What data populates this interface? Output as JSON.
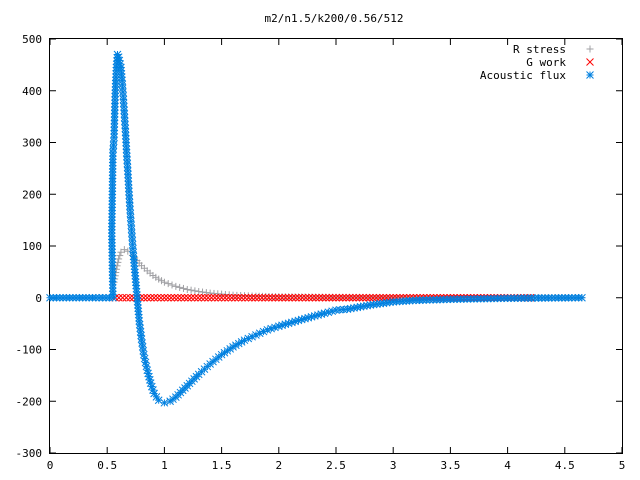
{
  "chart_data": {
    "type": "scatter",
    "title": "m2/n1.5/k200/0.56/512",
    "xlabel": "",
    "ylabel": "",
    "xlim": [
      0,
      5
    ],
    "ylim": [
      -300,
      500
    ],
    "xticks": [
      "0",
      "0.5",
      "1",
      "1.5",
      "2",
      "2.5",
      "3",
      "3.5",
      "4",
      "4.5",
      "5"
    ],
    "yticks": [
      "-300",
      "-200",
      "-100",
      "0",
      "100",
      "200",
      "300",
      "400",
      "500"
    ],
    "grid": false,
    "legend_position": "top-right",
    "series": [
      {
        "name": "R stress",
        "marker": "plus",
        "color": "#a0a0a4",
        "points": [
          [
            0.56,
            30
          ],
          [
            0.58,
            55
          ],
          [
            0.6,
            75
          ],
          [
            0.62,
            88
          ],
          [
            0.65,
            93
          ],
          [
            0.68,
            90
          ],
          [
            0.72,
            82
          ],
          [
            0.76,
            72
          ],
          [
            0.8,
            62
          ],
          [
            0.85,
            52
          ],
          [
            0.9,
            43
          ],
          [
            0.95,
            36
          ],
          [
            1.0,
            30
          ],
          [
            1.1,
            22
          ],
          [
            1.2,
            16
          ],
          [
            1.3,
            12
          ],
          [
            1.4,
            9
          ],
          [
            1.5,
            7
          ],
          [
            1.6,
            5
          ],
          [
            1.7,
            4
          ],
          [
            1.8,
            3
          ],
          [
            2.0,
            2
          ],
          [
            2.2,
            1.5
          ],
          [
            2.5,
            1
          ],
          [
            3.0,
            0.5
          ],
          [
            3.5,
            0.3
          ],
          [
            4.0,
            0.2
          ],
          [
            4.5,
            0.1
          ],
          [
            4.65,
            0.1
          ]
        ]
      },
      {
        "name": "G work",
        "marker": "cross",
        "color": "#ff0000",
        "points": [
          [
            0.57,
            0
          ],
          [
            0.7,
            0
          ],
          [
            1.0,
            0
          ],
          [
            1.5,
            0
          ],
          [
            2.0,
            0
          ],
          [
            2.5,
            0
          ],
          [
            3.0,
            0
          ],
          [
            3.5,
            0
          ],
          [
            4.0,
            0
          ],
          [
            4.2,
            0
          ]
        ]
      },
      {
        "name": "Acoustic flux",
        "marker": "star",
        "color": "#0080e0",
        "points": [
          [
            0.0,
            0
          ],
          [
            0.2,
            0
          ],
          [
            0.4,
            0
          ],
          [
            0.55,
            0
          ],
          [
            0.54,
            125
          ],
          [
            0.55,
            280
          ],
          [
            0.56,
            310
          ],
          [
            0.57,
            395
          ],
          [
            0.58,
            445
          ],
          [
            0.59,
            470
          ],
          [
            0.6,
            465
          ],
          [
            0.62,
            445
          ],
          [
            0.63,
            420
          ],
          [
            0.64,
            390
          ],
          [
            0.65,
            355
          ],
          [
            0.66,
            320
          ],
          [
            0.67,
            280
          ],
          [
            0.68,
            245
          ],
          [
            0.69,
            205
          ],
          [
            0.7,
            170
          ],
          [
            0.71,
            140
          ],
          [
            0.72,
            110
          ],
          [
            0.73,
            80
          ],
          [
            0.74,
            55
          ],
          [
            0.75,
            30
          ],
          [
            0.76,
            5
          ],
          [
            0.77,
            -20
          ],
          [
            0.78,
            -45
          ],
          [
            0.8,
            -80
          ],
          [
            0.82,
            -110
          ],
          [
            0.85,
            -140
          ],
          [
            0.88,
            -165
          ],
          [
            0.91,
            -185
          ],
          [
            0.95,
            -198
          ],
          [
            1.0,
            -203
          ],
          [
            1.05,
            -200
          ],
          [
            1.1,
            -192
          ],
          [
            1.2,
            -170
          ],
          [
            1.3,
            -148
          ],
          [
            1.4,
            -128
          ],
          [
            1.5,
            -110
          ],
          [
            1.6,
            -95
          ],
          [
            1.7,
            -82
          ],
          [
            1.8,
            -72
          ],
          [
            1.9,
            -62
          ],
          [
            2.0,
            -55
          ],
          [
            2.2,
            -42
          ],
          [
            2.4,
            -30
          ],
          [
            2.5,
            -24
          ],
          [
            2.6,
            -22
          ],
          [
            2.8,
            -14
          ],
          [
            3.0,
            -8
          ],
          [
            3.2,
            -5
          ],
          [
            3.5,
            -3
          ],
          [
            4.0,
            -1
          ],
          [
            4.3,
            -0.5
          ],
          [
            4.65,
            0
          ]
        ]
      }
    ]
  }
}
